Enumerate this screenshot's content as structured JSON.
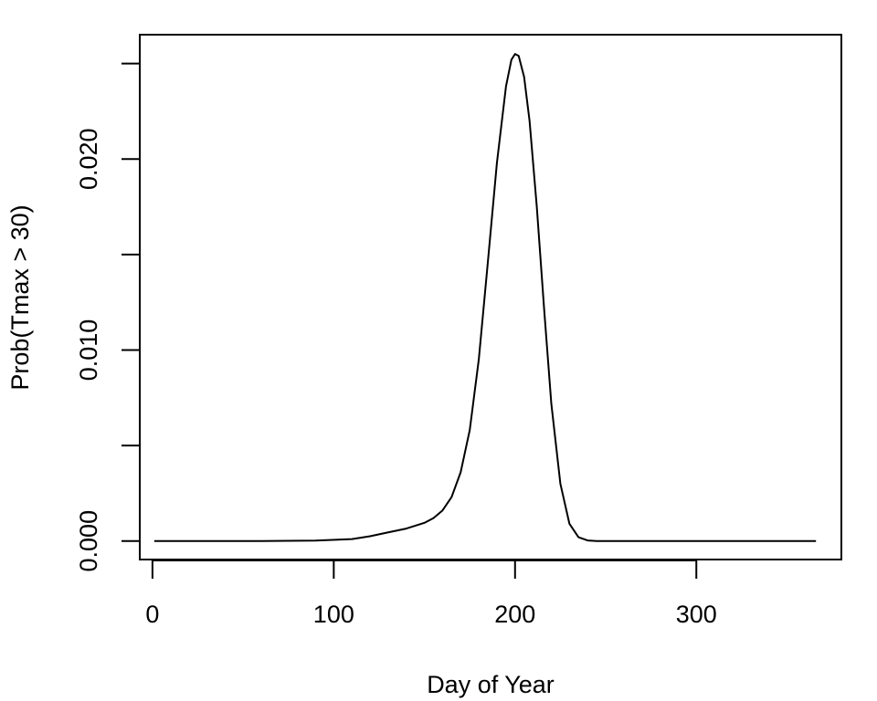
{
  "chart_data": {
    "type": "line",
    "title": "",
    "xlabel": "Day of Year",
    "ylabel": "Prob(Tmax > 30)",
    "xlim": [
      -7,
      380
    ],
    "ylim": [
      -0.00097,
      0.02651
    ],
    "grid": false,
    "x_ticks": [
      0,
      100,
      200,
      300
    ],
    "x_tick_labels": [
      "0",
      "100",
      "200",
      "300"
    ],
    "y_ticks": [
      0.0,
      0.005,
      0.01,
      0.015,
      0.02,
      0.025
    ],
    "y_tick_labels": [
      "0.000",
      "",
      "0.010",
      "",
      "0.020",
      ""
    ],
    "series": [
      {
        "color": "#000000",
        "x": [
          1,
          60,
          90,
          110,
          120,
          130,
          140,
          150,
          155,
          160,
          165,
          170,
          175,
          180,
          185,
          190,
          195,
          198,
          200,
          202,
          205,
          208,
          212,
          216,
          220,
          225,
          230,
          235,
          240,
          245,
          250,
          300,
          366
        ],
        "y": [
          0.0,
          0.0,
          2e-05,
          0.0001,
          0.00025,
          0.00045,
          0.00065,
          0.00095,
          0.0012,
          0.0016,
          0.0023,
          0.0036,
          0.0058,
          0.0095,
          0.0146,
          0.0198,
          0.0238,
          0.0252,
          0.0255,
          0.0254,
          0.0243,
          0.022,
          0.0175,
          0.0122,
          0.0072,
          0.003,
          0.0009,
          0.0002,
          3e-05,
          0.0,
          0.0,
          0.0,
          0.0
        ]
      }
    ]
  }
}
